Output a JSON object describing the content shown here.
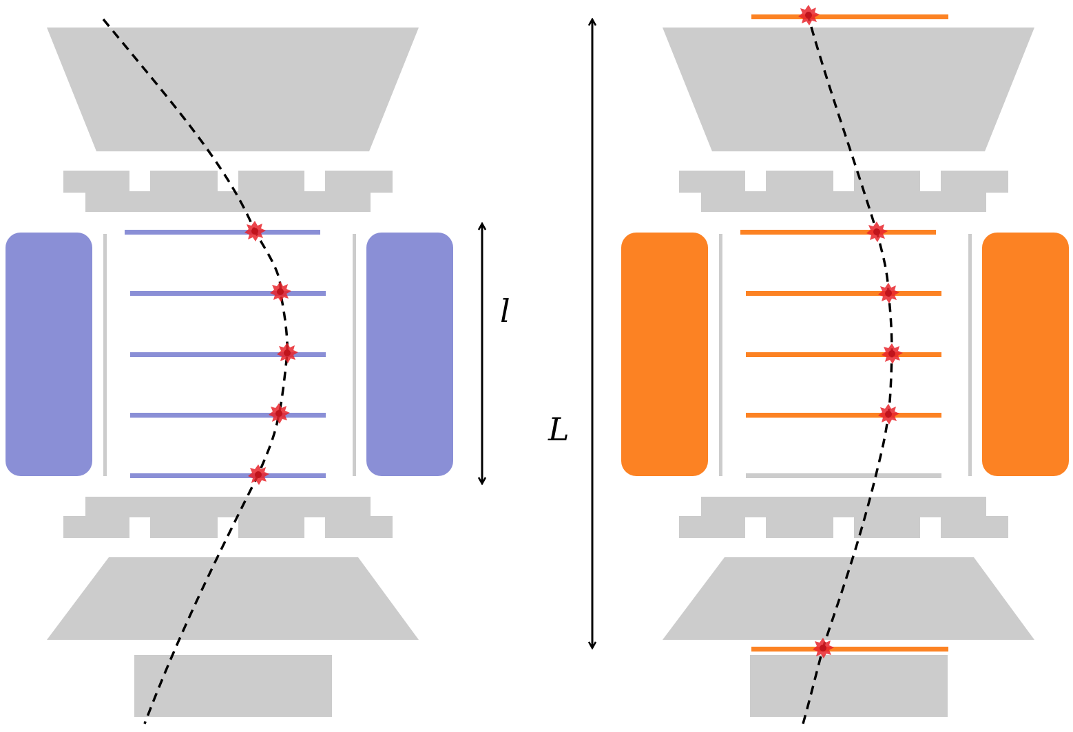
{
  "colors": {
    "magnet_gray": "#cccccc",
    "left_accent": "#8a8fd6",
    "right_accent": "#fc8223",
    "inactive_layer": "#cccccc",
    "track": "#000000",
    "hit_marker": "#e8242c",
    "arrow": "#000000"
  },
  "labels": {
    "short_length": "l",
    "long_length": "L"
  },
  "configurations": [
    {
      "name": "short-lever-arm",
      "accent_color": "#8a8fd6",
      "active_layer_count": 5
    },
    {
      "name": "long-lever-arm",
      "accent_color": "#fc8223",
      "active_layer_count": 6
    }
  ]
}
